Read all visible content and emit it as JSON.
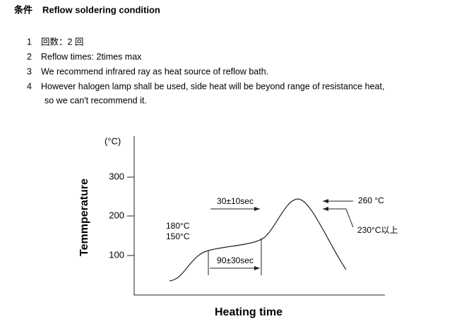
{
  "header": {
    "label_cn": "条件",
    "title": "Reflow soldering condition"
  },
  "items": [
    {
      "number": "1",
      "text": "回数：2 回"
    },
    {
      "number": "2",
      "text": "Reflow times: 2times max"
    },
    {
      "number": "3",
      "text": "We recommend infrared ray as heat source of reflow bath."
    },
    {
      "number": "4",
      "text": "However halogen lamp shall be used, side heat will be beyond range of resistance heat,",
      "continuation": "so we can't recommend it."
    }
  ],
  "diagram": {
    "y_unit": "(°C)",
    "y_label": "Temmperature",
    "x_label": "Heating time",
    "y_ticks": [
      "300",
      "200",
      "100"
    ],
    "annotations": {
      "preheat_temp_high": "180°C",
      "preheat_temp_low": "150°C",
      "preheat_time": "90±30sec",
      "peak_time": "30±10sec",
      "peak_temp": "260 °C",
      "above_temp": "230°C以上"
    }
  }
}
